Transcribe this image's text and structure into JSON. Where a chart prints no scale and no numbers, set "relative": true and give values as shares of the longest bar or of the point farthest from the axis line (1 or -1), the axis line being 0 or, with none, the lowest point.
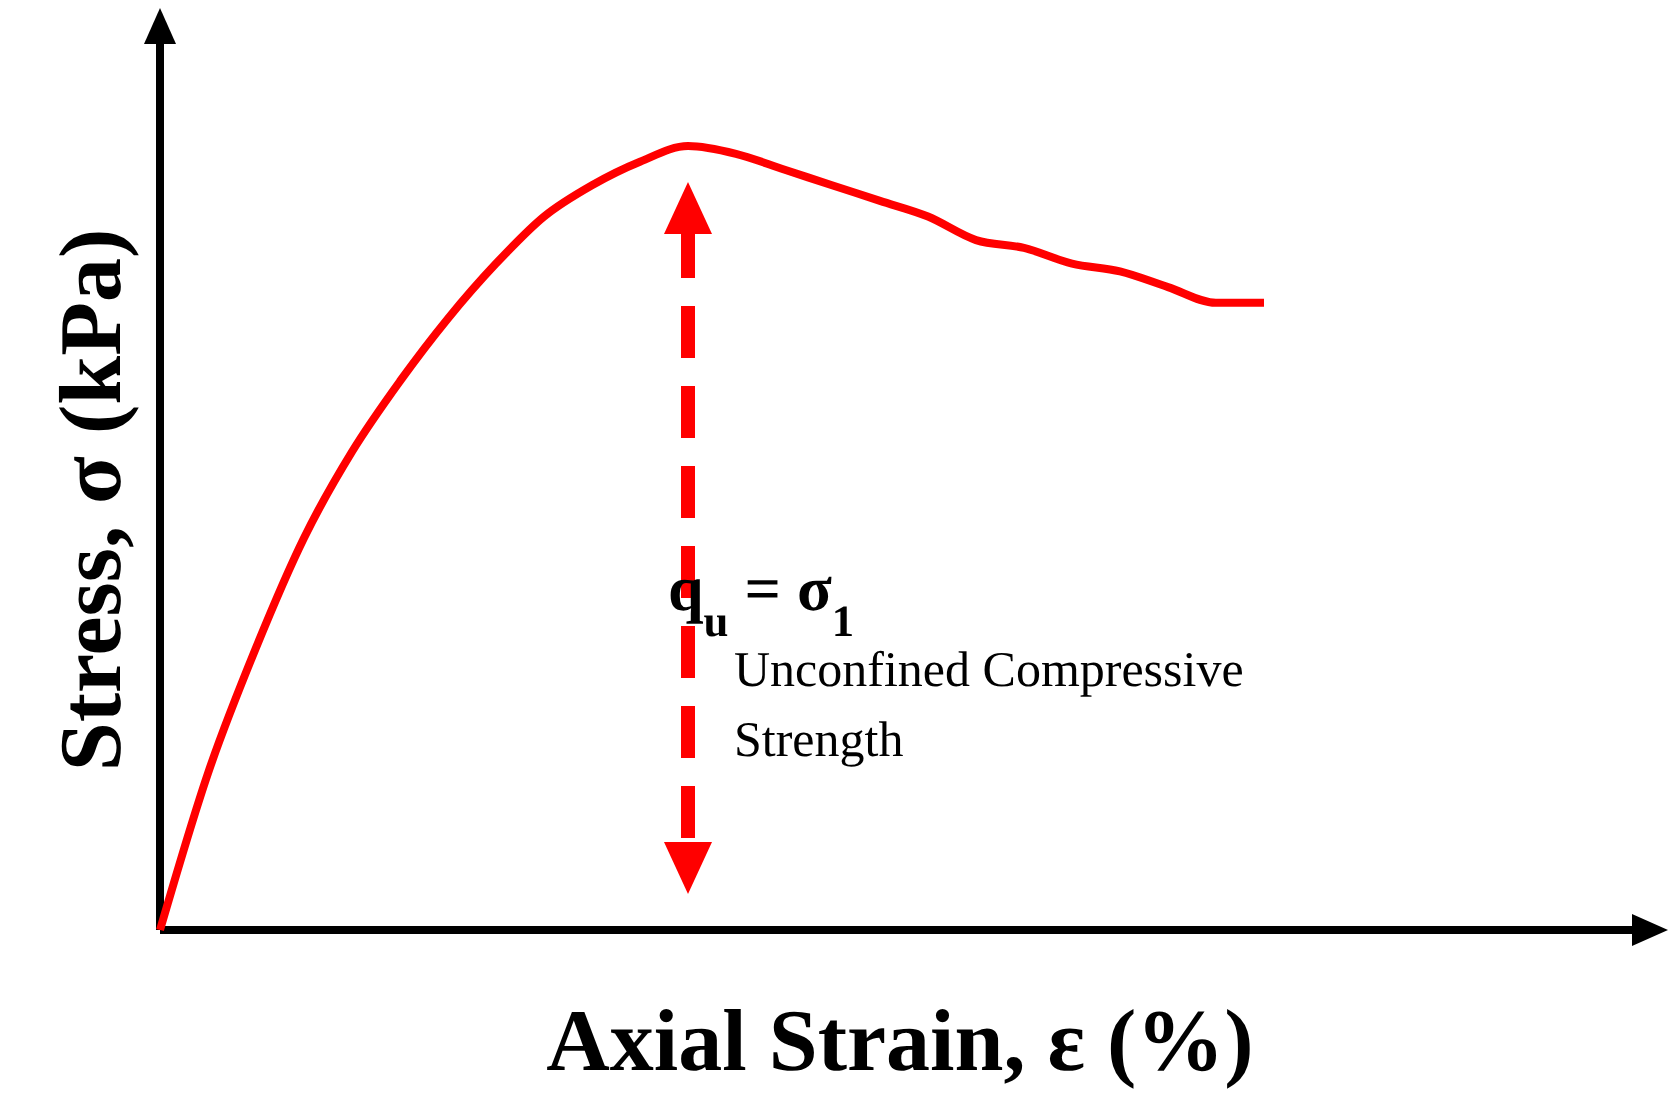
{
  "chart_data": {
    "type": "line",
    "relative": true,
    "xlabel": "Axial Strain, ε (%)",
    "ylabel": "Stress, σ (kPa)",
    "categories": [
      null,
      null,
      null,
      null,
      null,
      null,
      null,
      null,
      null,
      null,
      null,
      null,
      null,
      null,
      null,
      null,
      null,
      null,
      null,
      null,
      null,
      null,
      null,
      null
    ],
    "series": [
      {
        "color": "#ff0000",
        "values": [
          0,
          0.2,
          0.36,
          0.5,
          0.61,
          0.7,
          0.78,
          0.85,
          0.91,
          0.95,
          0.98,
          1,
          0.99,
          0.97,
          0.95,
          0.93,
          0.91,
          0.88,
          0.87,
          0.85,
          0.84,
          0.82,
          0.8,
          0.8
        ]
      }
    ],
    "annotations": [
      "q$_{u}$ = σ$_{1}$",
      "Unconfined Compressive Strength"
    ],
    "marker": "none",
    "line_style": "solid"
  }
}
